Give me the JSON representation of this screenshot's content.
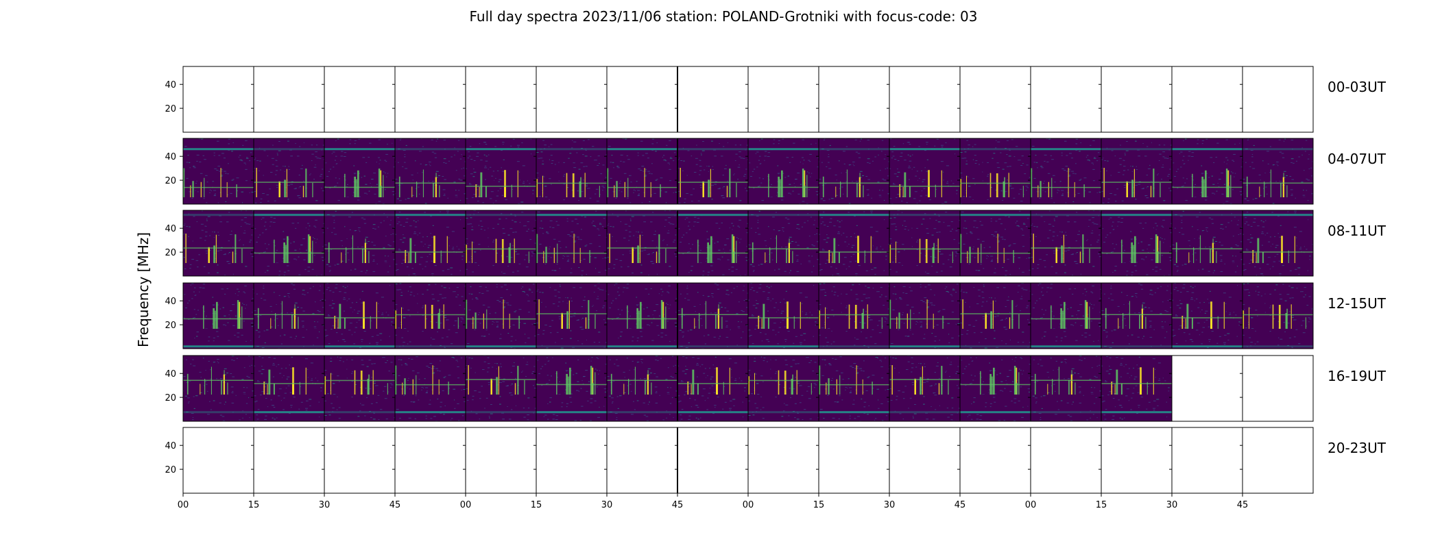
{
  "chart_data": {
    "type": "heatmap",
    "title": "Full day spectra 2023/11/06 station: POLAND-Grotniki with focus-code: 03",
    "ylabel": "Frequency [MHz]",
    "ylim": [
      0,
      55
    ],
    "yticks": [
      20,
      40
    ],
    "xticks": [
      "00",
      "15",
      "30",
      "45",
      "00",
      "15",
      "30",
      "45",
      "00",
      "15",
      "30",
      "45",
      "00",
      "15",
      "30",
      "45"
    ],
    "colormap": [
      "#440154",
      "#3b528b",
      "#21918c",
      "#5ec962",
      "#fde725"
    ],
    "rows": [
      {
        "label": "00-03UT",
        "panels": [
          "empty",
          "empty",
          "empty",
          "empty",
          "empty",
          "empty",
          "empty",
          "empty",
          "empty",
          "empty",
          "empty",
          "empty",
          "empty",
          "empty",
          "empty",
          "empty"
        ]
      },
      {
        "label": "04-07UT",
        "panels": [
          "data",
          "data",
          "data",
          "data",
          "data",
          "data",
          "data",
          "data",
          "data",
          "data",
          "data",
          "data",
          "data",
          "data",
          "data",
          "data"
        ]
      },
      {
        "label": "08-11UT",
        "panels": [
          "data",
          "data",
          "data",
          "data",
          "data",
          "data",
          "data",
          "data",
          "data",
          "data",
          "data",
          "data",
          "data",
          "data",
          "data",
          "data"
        ]
      },
      {
        "label": "12-15UT",
        "panels": [
          "data",
          "data",
          "data",
          "data",
          "data",
          "data",
          "data",
          "data",
          "data",
          "data",
          "data",
          "data",
          "data",
          "data",
          "data",
          "data"
        ]
      },
      {
        "label": "16-19UT",
        "panels": [
          "data",
          "data",
          "data",
          "data",
          "data",
          "data",
          "data",
          "data",
          "data",
          "data",
          "data",
          "data",
          "data",
          "data",
          "empty",
          "empty"
        ]
      },
      {
        "label": "20-23UT",
        "panels": [
          "empty",
          "empty",
          "empty",
          "empty",
          "empty",
          "empty",
          "empty",
          "empty",
          "empty",
          "empty",
          "empty",
          "empty",
          "empty",
          "empty",
          "empty",
          "empty"
        ]
      }
    ]
  }
}
